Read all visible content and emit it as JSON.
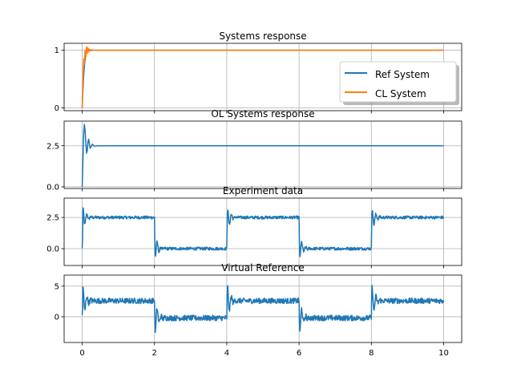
{
  "figure": {
    "line_colors": {
      "blue": "#1f77b4",
      "orange": "#ff7f0e"
    },
    "grid_color": "#b0b0b0"
  },
  "chart_data": [
    {
      "type": "line",
      "title": "Systems response",
      "xlim": [
        -0.5,
        10.5
      ],
      "ylim": [
        -0.05,
        1.12
      ],
      "xticks": [
        0,
        2,
        4,
        6,
        8,
        10
      ],
      "yticks": [
        0,
        1
      ],
      "ytick_labels": [
        "0",
        "1"
      ],
      "show_xtick_labels": false,
      "grid": true,
      "legend": {
        "placement": "right",
        "entries": [
          "Ref System",
          "CL System"
        ]
      },
      "series": [
        {
          "name": "Ref System",
          "color": "#1f77b4",
          "x": [
            0,
            0.02,
            0.04,
            0.06,
            0.08,
            0.1,
            0.12,
            0.15,
            0.2,
            0.3,
            0.5,
            1,
            2,
            4,
            6,
            8,
            10
          ],
          "y": [
            0,
            0.3,
            0.55,
            0.72,
            0.84,
            0.91,
            0.95,
            0.98,
            0.995,
            1,
            1,
            1,
            1,
            1,
            1,
            1,
            1
          ]
        },
        {
          "name": "CL System",
          "color": "#ff7f0e",
          "x": [
            0,
            0.02,
            0.04,
            0.06,
            0.08,
            0.1,
            0.12,
            0.14,
            0.16,
            0.18,
            0.2,
            0.22,
            0.25,
            0.3,
            0.35,
            0.4,
            0.5,
            1,
            2,
            4,
            6,
            8,
            10
          ],
          "y": [
            0,
            0.45,
            0.85,
            0.75,
            1.0,
            0.88,
            1.06,
            0.95,
            1.04,
            0.97,
            1.02,
            0.99,
            1.01,
            1.0,
            1.0,
            1.0,
            1.0,
            1.0,
            1.0,
            1.0,
            1.0,
            1.0,
            1.0
          ]
        }
      ]
    },
    {
      "type": "line",
      "title": "OL Systems response",
      "xlim": [
        -0.5,
        10.5
      ],
      "ylim": [
        -0.1,
        4.0
      ],
      "xticks": [
        0,
        2,
        4,
        6,
        8,
        10
      ],
      "yticks": [
        0,
        2.5
      ],
      "ytick_labels": [
        "0.0",
        "2.5"
      ],
      "show_xtick_labels": false,
      "grid": true,
      "series": [
        {
          "color": "#1f77b4",
          "x": [
            0,
            0.02,
            0.04,
            0.06,
            0.08,
            0.1,
            0.12,
            0.14,
            0.16,
            0.18,
            0.2,
            0.22,
            0.25,
            0.28,
            0.32,
            0.36,
            0.4,
            0.5,
            1,
            2,
            4,
            6,
            8,
            10
          ],
          "y": [
            0,
            1.6,
            3.2,
            3.8,
            3.4,
            2.7,
            2.05,
            2.2,
            2.75,
            2.9,
            2.6,
            2.35,
            2.45,
            2.6,
            2.5,
            2.47,
            2.5,
            2.5,
            2.5,
            2.5,
            2.5,
            2.5,
            2.5,
            2.5
          ]
        }
      ]
    },
    {
      "type": "line",
      "title": "Experiment data",
      "xlim": [
        -0.5,
        10.5
      ],
      "ylim": [
        -1.35,
        4.05
      ],
      "xticks": [
        0,
        2,
        4,
        6,
        8,
        10
      ],
      "yticks": [
        0,
        2.5
      ],
      "ytick_labels": [
        "0.0",
        "2.5"
      ],
      "show_xtick_labels": false,
      "grid": true,
      "signal": {
        "kind": "square_wave_step_response",
        "period": 4,
        "high": 2.5,
        "low": 0,
        "x_range": [
          0,
          10
        ],
        "peak_value": 3.8,
        "trough_value": -1.2,
        "noise_amplitude": 0.12
      }
    },
    {
      "type": "line",
      "title": "Virtual Reference",
      "xlim": [
        -0.5,
        10.5
      ],
      "ylim": [
        -4.2,
        6.8
      ],
      "xticks": [
        0,
        2,
        4,
        6,
        8,
        10
      ],
      "xtick_labels": [
        "0",
        "2",
        "4",
        "6",
        "8",
        "10"
      ],
      "yticks": [
        0,
        5
      ],
      "ytick_labels": [
        "0",
        "5"
      ],
      "show_xtick_labels": true,
      "grid": true,
      "signal": {
        "kind": "square_wave_step_response",
        "period": 4,
        "high": 2.6,
        "low": -0.2,
        "x_range": [
          0,
          10
        ],
        "peak_value": 6.2,
        "trough_value": -3.7,
        "noise_amplitude": 0.45
      }
    }
  ]
}
